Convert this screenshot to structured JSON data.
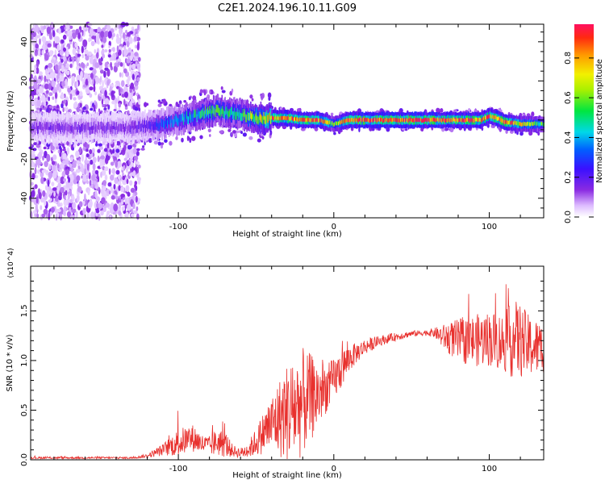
{
  "title": "C2E1.2024.196.10.11.G09",
  "colors": {
    "line": "#e8312e",
    "axis": "#000000",
    "background": "#ffffff"
  },
  "chart_data": [
    {
      "type": "heatmap",
      "xlabel": "Height of straight line (km)",
      "ylabel": "Frequency (Hz)",
      "xlim": [
        -195,
        135
      ],
      "ylim": [
        -50,
        49
      ],
      "xticks": [
        -100,
        0,
        100
      ],
      "xtick_labels": [
        "-100",
        "0",
        "100"
      ],
      "yticks": [
        -40,
        -20,
        0,
        20,
        40
      ],
      "ytick_labels": [
        "-40",
        "-20",
        "0",
        "20",
        "40"
      ],
      "colorbar": {
        "label": "Normalized spectral amplitude",
        "range": [
          0,
          0.97
        ],
        "ticks": [
          0.0,
          0.2,
          0.4,
          0.6,
          0.8
        ],
        "tick_labels": [
          "0.0",
          "0.2",
          "0.4",
          "0.6",
          "0.8"
        ],
        "colormap": "rainbow (white-purple-blue-cyan-green-yellow-orange-red)"
      },
      "ridge": {
        "x": [
          -135,
          -120,
          -110,
          -100,
          -90,
          -80,
          -75,
          -70,
          -60,
          -55,
          -50,
          -40,
          -30,
          -20,
          -10,
          0,
          10,
          20,
          40,
          60,
          80,
          95,
          100,
          105,
          110,
          120,
          135
        ],
        "freq": [
          -4,
          -3,
          -2,
          0,
          2,
          4,
          5,
          4,
          3,
          2,
          1,
          1,
          1,
          0,
          0,
          -2,
          0,
          0,
          0,
          0,
          0,
          0,
          2,
          1,
          -1,
          -2,
          -2
        ],
        "amplitude": [
          0.15,
          0.2,
          0.3,
          0.35,
          0.45,
          0.5,
          0.5,
          0.45,
          0.5,
          0.55,
          0.6,
          0.8,
          0.85,
          0.9,
          0.9,
          0.55,
          0.9,
          0.95,
          0.95,
          0.95,
          0.9,
          0.9,
          0.85,
          0.9,
          0.9,
          0.7,
          0.5
        ]
      },
      "noise_region_x": [
        -195,
        -125
      ]
    },
    {
      "type": "line",
      "xlabel": "Height of straight line (km)",
      "ylabel": "SNR (10 * v/v)",
      "y_multiplier": "(x10^4)",
      "xlim": [
        -195,
        135
      ],
      "ylim": [
        0,
        1.95
      ],
      "xticks": [
        -100,
        0,
        100
      ],
      "xtick_labels": [
        "-100",
        "0",
        "100"
      ],
      "yticks": [
        0.0,
        0.5,
        1.0,
        1.5
      ],
      "ytick_labels": [
        "0.0",
        "0.5",
        "1.0",
        "1.5"
      ],
      "series": [
        {
          "name": "",
          "color": "#e8312e",
          "x": [
            -195,
            -170,
            -150,
            -130,
            -120,
            -110,
            -105,
            -100,
            -95,
            -90,
            -85,
            -80,
            -75,
            -70,
            -65,
            -60,
            -55,
            -50,
            -45,
            -40,
            -35,
            -30,
            -25,
            -20,
            -15,
            -10,
            -5,
            0,
            5,
            10,
            15,
            20,
            30,
            40,
            50,
            60,
            65,
            70,
            80,
            90,
            100,
            110,
            115,
            120,
            125,
            135
          ],
          "mean": [
            0.02,
            0.02,
            0.02,
            0.02,
            0.04,
            0.1,
            0.14,
            0.17,
            0.2,
            0.22,
            0.16,
            0.14,
            0.18,
            0.16,
            0.09,
            0.07,
            0.1,
            0.18,
            0.28,
            0.36,
            0.42,
            0.48,
            0.52,
            0.58,
            0.62,
            0.66,
            0.72,
            0.8,
            0.92,
            1.02,
            1.08,
            1.14,
            1.2,
            1.24,
            1.27,
            1.28,
            1.28,
            1.24,
            1.2,
            1.2,
            1.22,
            1.18,
            1.22,
            1.2,
            1.15,
            1.12
          ],
          "noise": [
            0.01,
            0.01,
            0.01,
            0.01,
            0.02,
            0.06,
            0.1,
            0.14,
            0.14,
            0.14,
            0.1,
            0.1,
            0.14,
            0.14,
            0.06,
            0.05,
            0.08,
            0.14,
            0.22,
            0.3,
            0.4,
            0.5,
            0.55,
            0.55,
            0.45,
            0.35,
            0.25,
            0.22,
            0.2,
            0.14,
            0.1,
            0.08,
            0.05,
            0.04,
            0.03,
            0.03,
            0.05,
            0.12,
            0.22,
            0.26,
            0.28,
            0.3,
            0.4,
            0.38,
            0.32,
            0.26
          ]
        }
      ]
    }
  ]
}
